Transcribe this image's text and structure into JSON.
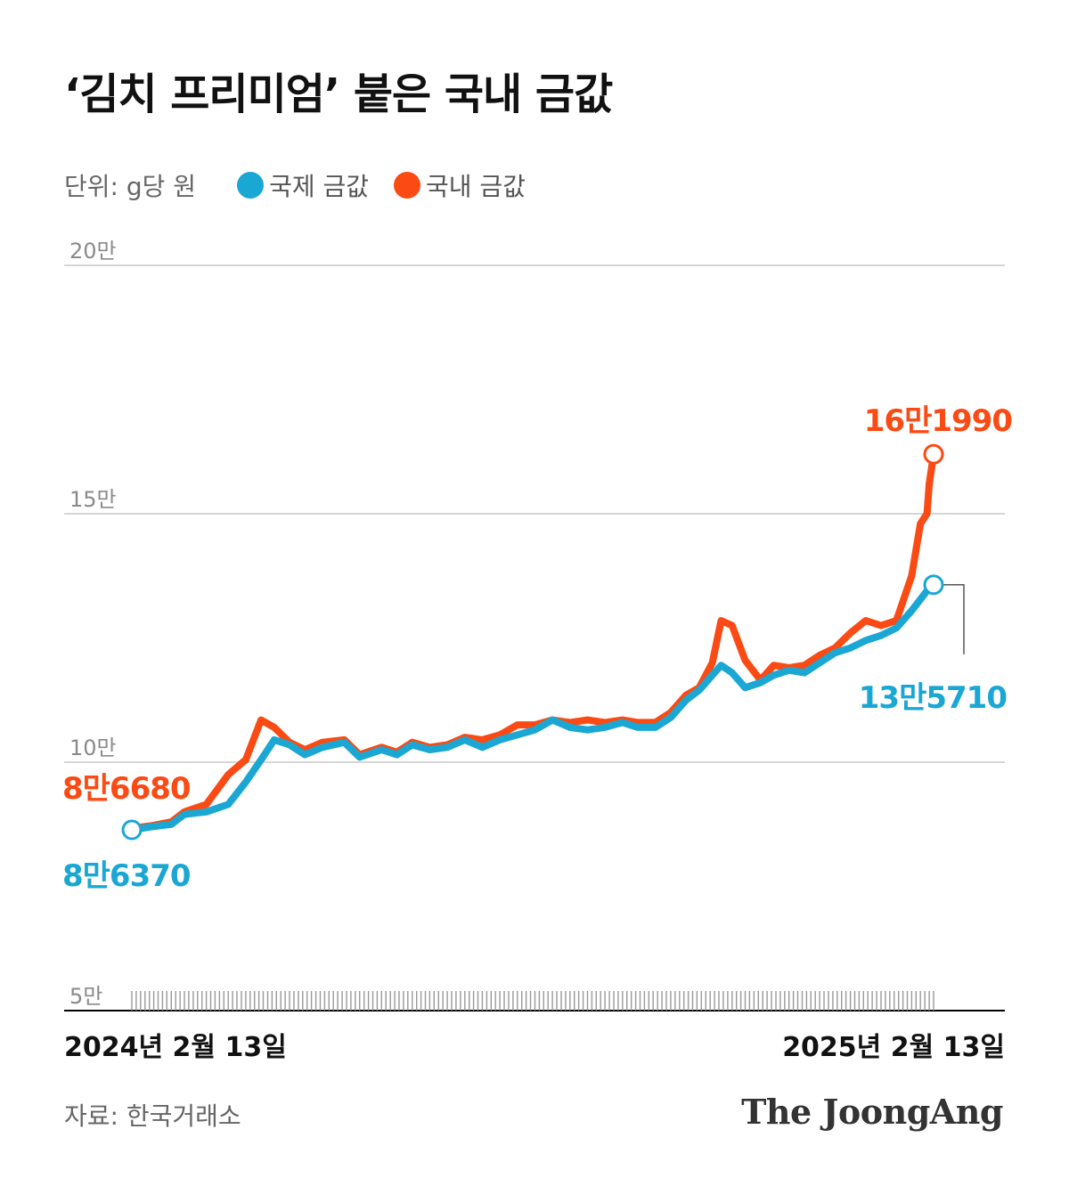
{
  "header": {
    "title": "‘김치 프리미엄’ 붙은 국내 금값"
  },
  "legend": {
    "unit": "단위: g당 원",
    "items": [
      "국제 금값",
      "국내 금값"
    ]
  },
  "footer": {
    "source": "자료: 한국거래소",
    "brand": "The JoongAng"
  },
  "colors": {
    "international": "#1aa7d4",
    "domestic": "#fb4a13",
    "grid": "#c9c9c9",
    "axis": "#000000",
    "tick": "#8a8a8a"
  },
  "chart_data": {
    "type": "line",
    "x_start": "2024-02-13",
    "x_end": "2025-02-13",
    "x_tick_labels": [
      "2024년 2월 13일",
      "2025년 2월 13일"
    ],
    "y_ticks": [
      50000,
      100000,
      150000,
      200000
    ],
    "y_tick_labels": [
      "5만",
      "10만",
      "15만",
      "20만"
    ],
    "ylim": [
      50000,
      200000
    ],
    "grid": true,
    "series": [
      {
        "name": "국제 금값",
        "color": "#1aa7d4",
        "points": [
          [
            "2024-02-13",
            86370
          ],
          [
            "2024-02-22",
            87000
          ],
          [
            "2024-03-02",
            87500
          ],
          [
            "2024-03-08",
            89500
          ],
          [
            "2024-03-18",
            90000
          ],
          [
            "2024-03-28",
            91500
          ],
          [
            "2024-04-05",
            96000
          ],
          [
            "2024-04-12",
            100500
          ],
          [
            "2024-04-18",
            104500
          ],
          [
            "2024-04-25",
            103500
          ],
          [
            "2024-05-02",
            101500
          ],
          [
            "2024-05-10",
            103000
          ],
          [
            "2024-05-20",
            104000
          ],
          [
            "2024-05-27",
            101000
          ],
          [
            "2024-06-06",
            102500
          ],
          [
            "2024-06-13",
            101500
          ],
          [
            "2024-06-20",
            103500
          ],
          [
            "2024-06-28",
            102500
          ],
          [
            "2024-07-06",
            103000
          ],
          [
            "2024-07-14",
            104500
          ],
          [
            "2024-07-22",
            103000
          ],
          [
            "2024-07-30",
            104500
          ],
          [
            "2024-08-07",
            105500
          ],
          [
            "2024-08-15",
            106500
          ],
          [
            "2024-08-23",
            108500
          ],
          [
            "2024-08-31",
            107000
          ],
          [
            "2024-09-08",
            106500
          ],
          [
            "2024-09-16",
            107000
          ],
          [
            "2024-09-24",
            108000
          ],
          [
            "2024-10-01",
            107000
          ],
          [
            "2024-10-09",
            107000
          ],
          [
            "2024-10-16",
            109000
          ],
          [
            "2024-10-23",
            112500
          ],
          [
            "2024-10-29",
            114500
          ],
          [
            "2024-11-04",
            117500
          ],
          [
            "2024-11-08",
            119500
          ],
          [
            "2024-11-13",
            118000
          ],
          [
            "2024-11-19",
            115000
          ],
          [
            "2024-11-26",
            116000
          ],
          [
            "2024-12-02",
            117500
          ],
          [
            "2024-12-09",
            118500
          ],
          [
            "2024-12-16",
            118000
          ],
          [
            "2024-12-23",
            120000
          ],
          [
            "2024-12-30",
            122000
          ],
          [
            "2025-01-06",
            123000
          ],
          [
            "2025-01-13",
            124500
          ],
          [
            "2025-01-20",
            125500
          ],
          [
            "2025-01-27",
            127000
          ],
          [
            "2025-02-03",
            130500
          ],
          [
            "2025-02-10",
            134500
          ],
          [
            "2025-02-13",
            135710
          ]
        ],
        "start_label": "8만6370",
        "end_label": "13만5710"
      },
      {
        "name": "국내 금값",
        "color": "#fb4a13",
        "points": [
          [
            "2024-02-13",
            86680
          ],
          [
            "2024-02-22",
            87200
          ],
          [
            "2024-03-02",
            88000
          ],
          [
            "2024-03-08",
            90000
          ],
          [
            "2024-03-18",
            91500
          ],
          [
            "2024-03-28",
            97500
          ],
          [
            "2024-04-05",
            100500
          ],
          [
            "2024-04-12",
            108500
          ],
          [
            "2024-04-18",
            107000
          ],
          [
            "2024-04-25",
            104000
          ],
          [
            "2024-05-02",
            102500
          ],
          [
            "2024-05-10",
            104000
          ],
          [
            "2024-05-20",
            104500
          ],
          [
            "2024-05-27",
            101500
          ],
          [
            "2024-06-06",
            103000
          ],
          [
            "2024-06-13",
            102000
          ],
          [
            "2024-06-20",
            104000
          ],
          [
            "2024-06-28",
            103000
          ],
          [
            "2024-07-06",
            103500
          ],
          [
            "2024-07-14",
            105000
          ],
          [
            "2024-07-22",
            104500
          ],
          [
            "2024-07-30",
            105500
          ],
          [
            "2024-08-07",
            107500
          ],
          [
            "2024-08-15",
            107500
          ],
          [
            "2024-08-23",
            108500
          ],
          [
            "2024-08-31",
            108000
          ],
          [
            "2024-09-08",
            108500
          ],
          [
            "2024-09-16",
            108000
          ],
          [
            "2024-09-24",
            108500
          ],
          [
            "2024-10-01",
            108000
          ],
          [
            "2024-10-09",
            108000
          ],
          [
            "2024-10-16",
            110000
          ],
          [
            "2024-10-23",
            113500
          ],
          [
            "2024-10-29",
            115000
          ],
          [
            "2024-11-04",
            120000
          ],
          [
            "2024-11-08",
            128500
          ],
          [
            "2024-11-13",
            127500
          ],
          [
            "2024-11-19",
            120500
          ],
          [
            "2024-11-26",
            116500
          ],
          [
            "2024-12-02",
            119500
          ],
          [
            "2024-12-09",
            119000
          ],
          [
            "2024-12-16",
            119500
          ],
          [
            "2024-12-23",
            121500
          ],
          [
            "2024-12-30",
            123000
          ],
          [
            "2025-01-06",
            126000
          ],
          [
            "2025-01-13",
            128500
          ],
          [
            "2025-01-20",
            127500
          ],
          [
            "2025-01-27",
            128500
          ],
          [
            "2025-02-03",
            137500
          ],
          [
            "2025-02-07",
            148000
          ],
          [
            "2025-02-10",
            150000
          ],
          [
            "2025-02-11",
            156000
          ],
          [
            "2025-02-13",
            161990
          ]
        ],
        "start_label": "8만6680",
        "end_label": "16만1990"
      }
    ]
  }
}
